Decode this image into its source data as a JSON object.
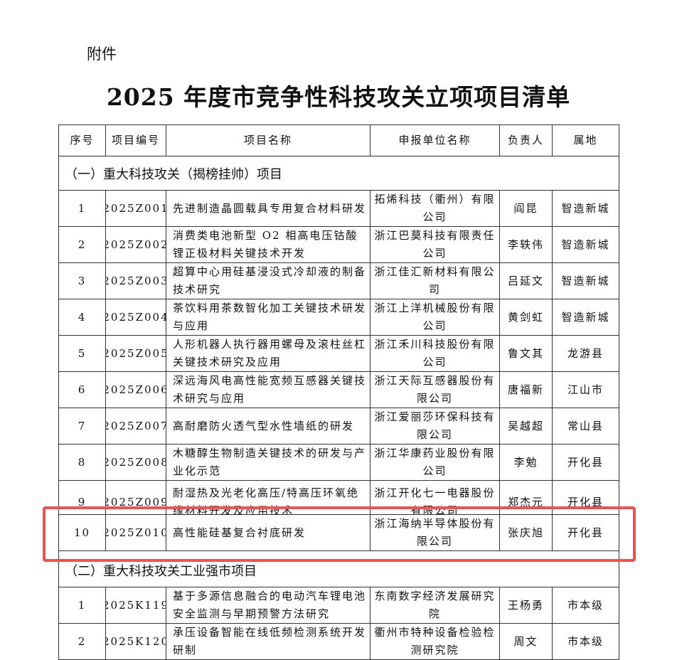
{
  "attachment": "附件",
  "title": "2025 年度市竞争性科技攻关立项项目清单",
  "headers": [
    "序号",
    "项目编号",
    "项目名称",
    "申报单位名称",
    "负责人",
    "属地"
  ],
  "sections": [
    {
      "title": "（一）重大科技攻关（揭榜挂帅）项目",
      "rows": [
        [
          "1",
          "2025Z001",
          "先进制造晶圆载具专用复合材料研发",
          "拓烯科技（衢州）有限公司",
          "阎昆",
          "智造新城"
        ],
        [
          "2",
          "2025Z002",
          "消费类电池新型 O2 相高电压钴酸锂正极材料关键技术开发",
          "浙江巴莫科技有限责任公司",
          "李轶伟",
          "智造新城"
        ],
        [
          "3",
          "2025Z003",
          "超算中心用硅基浸没式冷却液的制备技术研究",
          "浙江佳汇新材料有限公司",
          "吕延文",
          "智造新城"
        ],
        [
          "4",
          "2025Z004",
          "茶饮料用茶数智化加工关键技术研发与应用",
          "浙江上洋机械股份有限公司",
          "黄剑虹",
          "智造新城"
        ],
        [
          "5",
          "2025Z005",
          "人形机器人执行器用螺母及滚柱丝杠关键技术研究及应用",
          "浙江禾川科技股份有限公司",
          "鲁文其",
          "龙游县"
        ],
        [
          "6",
          "2025Z006",
          "深远海风电高性能宽频互感器关键技术研究与应用",
          "浙江天际互感器股份有限公司",
          "唐福新",
          "江山市"
        ],
        [
          "7",
          "2025Z007",
          "高耐磨防火透气型水性墙纸的研发",
          "浙江爱丽莎环保科技有限公司",
          "吴越超",
          "常山县"
        ],
        [
          "8",
          "2025Z008",
          "木糖醇生物制造关键技术的研发与产业化示范",
          "浙江华康药业股份有限公司",
          "李勉",
          "开化县"
        ],
        [
          "9",
          "2025Z009",
          "耐湿热及光老化高压/特高压环氧绝缘材料开发及应用技术",
          "浙江开化七一电器股份有限公司",
          "郑杰元",
          "开化县"
        ],
        [
          "10",
          "2025Z010",
          "高性能硅基复合衬底研发",
          "浙江海纳半导体股份有限公司",
          "张庆旭",
          "开化县"
        ]
      ]
    },
    {
      "title": "（二）重大科技攻关工业强市项目",
      "rows": [
        [
          "1",
          "2025K119",
          "基于多源信息融合的电动汽车锂电池安全监测与早期预警方法研究",
          "东南数字经济发展研究院",
          "王杨勇",
          "市本级"
        ],
        [
          "2",
          "2025K120",
          "承压设备智能在线低频检测系统开发研制",
          "衢州市特种设备检验检测研究院",
          "周文",
          "市本级"
        ]
      ]
    }
  ],
  "highlight_color": "#f05252"
}
